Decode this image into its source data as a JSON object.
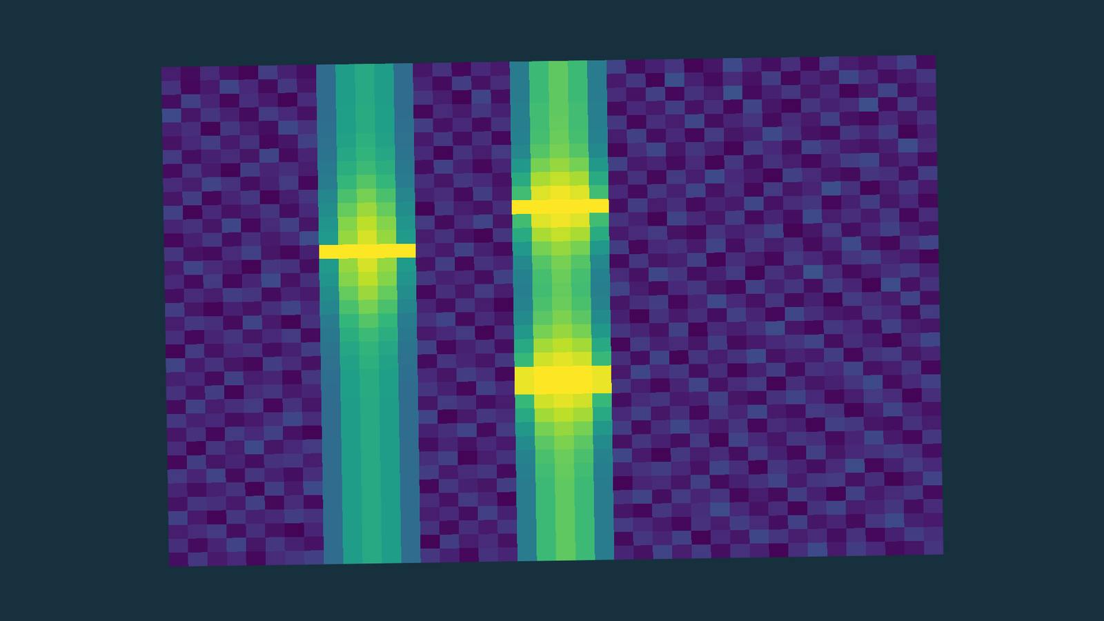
{
  "chart_data": {
    "type": "heatmap",
    "tick_labels": false,
    "zlim": [
      0,
      100
    ],
    "cells": [
      [
        8,
        3,
        12,
        5,
        1,
        18,
        9,
        4,
        35,
        55,
        60,
        55,
        35,
        6,
        14,
        2,
        11,
        7,
        42,
        68,
        75,
        68,
        42,
        20,
        3,
        9,
        15,
        1,
        6,
        22,
        10,
        4,
        13,
        2,
        17,
        8,
        5,
        11,
        19,
        3
      ],
      [
        14,
        2,
        7,
        20,
        11,
        3,
        16,
        6,
        35,
        55,
        60,
        55,
        35,
        10,
        3,
        18,
        5,
        12,
        42,
        68,
        75,
        68,
        42,
        7,
        16,
        1,
        24,
        9,
        3,
        12,
        5,
        18,
        2,
        10,
        6,
        21,
        13,
        4,
        8,
        15
      ],
      [
        4,
        19,
        10,
        2,
        13,
        7,
        1,
        12,
        35,
        55,
        60,
        55,
        35,
        15,
        8,
        1,
        20,
        4,
        42,
        68,
        75,
        68,
        42,
        12,
        5,
        19,
        2,
        14,
        8,
        25,
        3,
        9,
        16,
        6,
        11,
        1,
        7,
        20,
        4,
        10
      ],
      [
        22,
        6,
        15,
        9,
        3,
        17,
        11,
        5,
        35,
        56,
        61,
        56,
        35,
        2,
        12,
        7,
        16,
        9,
        43,
        69,
        75,
        69,
        43,
        3,
        11,
        7,
        18,
        5,
        13,
        2,
        20,
        6,
        1,
        15,
        9,
        12,
        24,
        3,
        17,
        6
      ],
      [
        9,
        13,
        1,
        16,
        8,
        4,
        21,
        14,
        36,
        56,
        61,
        56,
        36,
        18,
        5,
        11,
        3,
        14,
        43,
        69,
        76,
        69,
        43,
        16,
        2,
        13,
        8,
        21,
        4,
        10,
        15,
        3,
        12,
        7,
        19,
        5,
        2,
        11,
        6,
        14
      ],
      [
        5,
        11,
        18,
        7,
        14,
        2,
        6,
        19,
        37,
        57,
        63,
        57,
        37,
        7,
        16,
        4,
        13,
        2,
        44,
        70,
        77,
        70,
        44,
        8,
        19,
        4,
        11,
        2,
        17,
        6,
        9,
        22,
        14,
        5,
        3,
        16,
        10,
        18,
        1,
        9
      ],
      [
        17,
        4,
        9,
        12,
        6,
        20,
        3,
        10,
        38,
        59,
        65,
        59,
        38,
        11,
        1,
        14,
        8,
        17,
        47,
        73,
        79,
        73,
        47,
        2,
        13,
        21,
        6,
        15,
        9,
        1,
        18,
        11,
        4,
        20,
        13,
        7,
        5,
        9,
        23,
        12
      ],
      [
        3,
        15,
        7,
        1,
        18,
        10,
        13,
        8,
        40,
        62,
        68,
        62,
        40,
        4,
        19,
        9,
        2,
        10,
        53,
        79,
        84,
        79,
        53,
        19,
        7,
        10,
        3,
        12,
        1,
        16,
        4,
        14,
        8,
        2,
        10,
        18,
        21,
        6,
        11,
        3
      ],
      [
        12,
        8,
        20,
        14,
        4,
        9,
        17,
        2,
        42,
        66,
        73,
        66,
        42,
        13,
        6,
        16,
        11,
        5,
        61,
        87,
        91,
        87,
        61,
        5,
        14,
        2,
        17,
        8,
        22,
        11,
        7,
        1,
        19,
        12,
        6,
        3,
        15,
        13,
        4,
        18
      ],
      [
        6,
        18,
        2,
        10,
        16,
        1,
        8,
        15,
        46,
        71,
        79,
        71,
        46,
        9,
        12,
        3,
        18,
        7,
        69,
        95,
        98,
        95,
        69,
        11,
        3,
        16,
        9,
        20,
        5,
        13,
        2,
        17,
        6,
        10,
        24,
        14,
        1,
        8,
        16,
        7
      ],
      [
        19,
        1,
        11,
        5,
        9,
        15,
        4,
        11,
        49,
        76,
        85,
        76,
        49,
        1,
        16,
        8,
        5,
        13,
        100,
        100,
        100,
        100,
        100,
        4,
        18,
        8,
        13,
        3,
        10,
        7,
        21,
        5,
        12,
        15,
        2,
        9,
        18,
        6,
        11,
        2
      ],
      [
        10,
        14,
        6,
        21,
        2,
        12,
        19,
        6,
        52,
        81,
        90,
        81,
        52,
        17,
        3,
        12,
        20,
        6,
        69,
        95,
        98,
        95,
        69,
        14,
        9,
        1,
        20,
        11,
        6,
        18,
        3,
        10,
        4,
        22,
        8,
        13,
        7,
        16,
        2,
        12
      ],
      [
        2,
        9,
        16,
        4,
        13,
        7,
        11,
        23,
        54,
        84,
        94,
        84,
        54,
        8,
        14,
        5,
        1,
        15,
        61,
        87,
        91,
        87,
        61,
        7,
        12,
        17,
        5,
        2,
        15,
        9,
        12,
        20,
        1,
        6,
        17,
        4,
        11,
        19,
        9,
        5
      ],
      [
        15,
        5,
        3,
        12,
        19,
        6,
        2,
        9,
        100,
        100,
        100,
        100,
        100,
        12,
        7,
        19,
        9,
        3,
        53,
        79,
        84,
        79,
        53,
        18,
        2,
        11,
        14,
        7,
        20,
        4,
        16,
        8,
        13,
        3,
        10,
        22,
        6,
        2,
        14,
        20
      ],
      [
        7,
        20,
        12,
        8,
        1,
        16,
        14,
        4,
        54,
        84,
        94,
        84,
        54,
        5,
        18,
        2,
        14,
        10,
        47,
        73,
        79,
        73,
        47,
        3,
        16,
        6,
        9,
        19,
        1,
        13,
        8,
        2,
        17,
        11,
        5,
        15,
        19,
        10,
        7,
        1
      ],
      [
        11,
        3,
        17,
        2,
        10,
        22,
        5,
        13,
        52,
        81,
        90,
        81,
        52,
        16,
        9,
        11,
        4,
        19,
        44,
        70,
        77,
        70,
        44,
        12,
        5,
        21,
        15,
        4,
        9,
        17,
        1,
        14,
        7,
        25,
        12,
        3,
        8,
        13,
        18,
        9
      ],
      [
        4,
        12,
        8,
        18,
        15,
        3,
        10,
        7,
        49,
        76,
        85,
        76,
        49,
        2,
        13,
        6,
        17,
        8,
        43,
        69,
        76,
        69,
        43,
        20,
        8,
        3,
        11,
        16,
        6,
        2,
        19,
        9,
        15,
        4,
        18,
        10,
        1,
        23,
        5,
        14
      ],
      [
        18,
        6,
        1,
        9,
        5,
        13,
        20,
        11,
        46,
        71,
        79,
        71,
        46,
        10,
        4,
        15,
        8,
        1,
        45,
        71,
        77,
        71,
        45,
        6,
        13,
        18,
        2,
        10,
        22,
        11,
        5,
        16,
        3,
        9,
        1,
        17,
        12,
        7,
        20,
        4
      ],
      [
        8,
        16,
        13,
        3,
        20,
        7,
        1,
        14,
        42,
        66,
        73,
        66,
        42,
        14,
        20,
        3,
        12,
        6,
        48,
        74,
        80,
        74,
        48,
        9,
        1,
        14,
        7,
        13,
        4,
        19,
        10,
        2,
        21,
        13,
        7,
        5,
        16,
        11,
        3,
        17
      ],
      [
        13,
        2,
        10,
        15,
        6,
        11,
        17,
        3,
        40,
        62,
        68,
        62,
        40,
        7,
        11,
        17,
        1,
        13,
        53,
        79,
        84,
        79,
        53,
        15,
        10,
        5,
        19,
        1,
        12,
        8,
        14,
        23,
        6,
        2,
        16,
        11,
        4,
        19,
        8,
        6
      ],
      [
        1,
        17,
        5,
        11,
        14,
        4,
        9,
        18,
        38,
        59,
        65,
        59,
        38,
        19,
        2,
        9,
        14,
        4,
        60,
        86,
        90,
        86,
        60,
        2,
        17,
        9,
        12,
        6,
        18,
        3,
        7,
        11,
        15,
        20,
        4,
        13,
        9,
        1,
        12,
        21
      ],
      [
        20,
        7,
        14,
        6,
        2,
        18,
        12,
        5,
        37,
        57,
        63,
        57,
        37,
        3,
        15,
        10,
        6,
        16,
        67,
        93,
        96,
        93,
        67,
        13,
        4,
        20,
        1,
        15,
        8,
        14,
        22,
        5,
        10,
        7,
        18,
        2,
        14,
        17,
        6,
        10
      ],
      [
        9,
        11,
        3,
        19,
        8,
        10,
        2,
        16,
        36,
        56,
        61,
        56,
        36,
        11,
        6,
        18,
        13,
        2,
        97,
        100,
        100,
        100,
        97,
        7,
        21,
        11,
        16,
        4,
        13,
        1,
        9,
        18,
        3,
        14,
        11,
        20,
        5,
        8,
        15,
        2
      ],
      [
        14,
        5,
        18,
        1,
        12,
        15,
        7,
        10,
        35,
        56,
        61,
        56,
        35,
        15,
        9,
        2,
        19,
        11,
        97,
        100,
        100,
        100,
        97,
        16,
        8,
        2,
        10,
        20,
        5,
        12,
        17,
        1,
        13,
        6,
        9,
        15,
        22,
        3,
        11,
        19
      ],
      [
        3,
        19,
        8,
        13,
        17,
        2,
        14,
        6,
        35,
        55,
        60,
        55,
        35,
        6,
        17,
        13,
        4,
        8,
        67,
        93,
        96,
        93,
        67,
        4,
        12,
        15,
        7,
        9,
        19,
        6,
        3,
        14,
        20,
        11,
        2,
        8,
        17,
        12,
        1,
        13
      ],
      [
        16,
        9,
        11,
        4,
        7,
        13,
        21,
        12,
        35,
        55,
        60,
        55,
        35,
        20,
        1,
        7,
        16,
        12,
        60,
        86,
        90,
        86,
        60,
        11,
        19,
        6,
        13,
        2,
        16,
        10,
        21,
        7,
        4,
        17,
        14,
        1,
        9,
        20,
        10,
        5
      ],
      [
        6,
        14,
        2,
        17,
        11,
        19,
        5,
        1,
        35,
        55,
        60,
        55,
        35,
        9,
        13,
        20,
        3,
        17,
        53,
        79,
        84,
        79,
        53,
        18,
        3,
        13,
        21,
        11,
        7,
        15,
        2,
        12,
        9,
        1,
        19,
        16,
        6,
        4,
        14,
        8
      ],
      [
        12,
        1,
        15,
        8,
        22,
        6,
        11,
        17,
        35,
        55,
        60,
        55,
        35,
        4,
        10,
        5,
        11,
        7,
        48,
        74,
        80,
        74,
        48,
        5,
        15,
        9,
        4,
        17,
        1,
        20,
        11,
        6,
        16,
        13,
        3,
        10,
        21,
        7,
        2,
        16
      ],
      [
        2,
        18,
        6,
        10,
        4,
        14,
        16,
        8,
        35,
        55,
        60,
        55,
        35,
        13,
        19,
        1,
        8,
        14,
        45,
        71,
        77,
        71,
        45,
        21,
        7,
        1,
        16,
        8,
        12,
        4,
        17,
        9,
        2,
        19,
        6,
        11,
        14,
        18,
        13,
        4
      ],
      [
        17,
        10,
        20,
        3,
        15,
        9,
        4,
        13,
        35,
        55,
        60,
        55,
        35,
        18,
        7,
        12,
        15,
        3,
        43,
        69,
        76,
        69,
        43,
        9,
        14,
        18,
        11,
        5,
        20,
        13,
        1,
        16,
        10,
        4,
        12,
        23,
        2,
        9,
        17,
        11
      ],
      [
        10,
        4,
        9,
        14,
        1,
        18,
        7,
        22,
        35,
        55,
        60,
        55,
        35,
        2,
        16,
        9,
        6,
        18,
        42,
        68,
        75,
        68,
        42,
        1,
        10,
        12,
        6,
        19,
        3,
        9,
        14,
        20,
        7,
        15,
        17,
        5,
        13,
        1,
        8,
        20
      ],
      [
        5,
        15,
        13,
        7,
        19,
        2,
        12,
        3,
        35,
        55,
        60,
        55,
        35,
        12,
        5,
        17,
        10,
        1,
        42,
        68,
        75,
        68,
        42,
        14,
        20,
        4,
        17,
        10,
        15,
        2,
        8,
        3,
        18,
        9,
        1,
        19,
        7,
        12,
        16,
        3
      ],
      [
        19,
        7,
        1,
        16,
        9,
        11,
        18,
        14,
        35,
        55,
        60,
        55,
        35,
        8,
        11,
        4,
        19,
        9,
        42,
        68,
        75,
        68,
        42,
        6,
        2,
        16,
        9,
        13,
        23,
        11,
        5,
        12,
        1,
        14,
        20,
        8,
        10,
        15,
        4,
        12
      ],
      [
        8,
        12,
        17,
        4,
        13,
        5,
        1,
        10,
        35,
        55,
        60,
        55,
        35,
        14,
        3,
        13,
        7,
        15,
        42,
        68,
        75,
        68,
        42,
        17,
        11,
        7,
        2,
        14,
        8,
        18,
        12,
        4,
        19,
        6,
        10,
        3,
        16,
        22,
        9,
        7
      ],
      [
        13,
        3,
        10,
        20,
        6,
        16,
        9,
        5,
        35,
        55,
        60,
        55,
        35,
        1,
        18,
        8,
        12,
        5,
        42,
        68,
        75,
        68,
        42,
        3,
        16,
        10,
        19,
        1,
        11,
        6,
        21,
        15,
        8,
        12,
        4,
        14,
        2,
        9,
        18,
        13
      ],
      [
        4,
        16,
        7,
        11,
        2,
        12,
        15,
        19,
        35,
        55,
        60,
        55,
        35,
        16,
        9,
        2,
        14,
        10,
        42,
        68,
        75,
        68,
        42,
        10,
        5,
        20,
        8,
        17,
        4,
        14,
        9,
        1,
        13,
        22,
        7,
        18,
        11,
        3,
        6,
        15
      ]
    ]
  }
}
